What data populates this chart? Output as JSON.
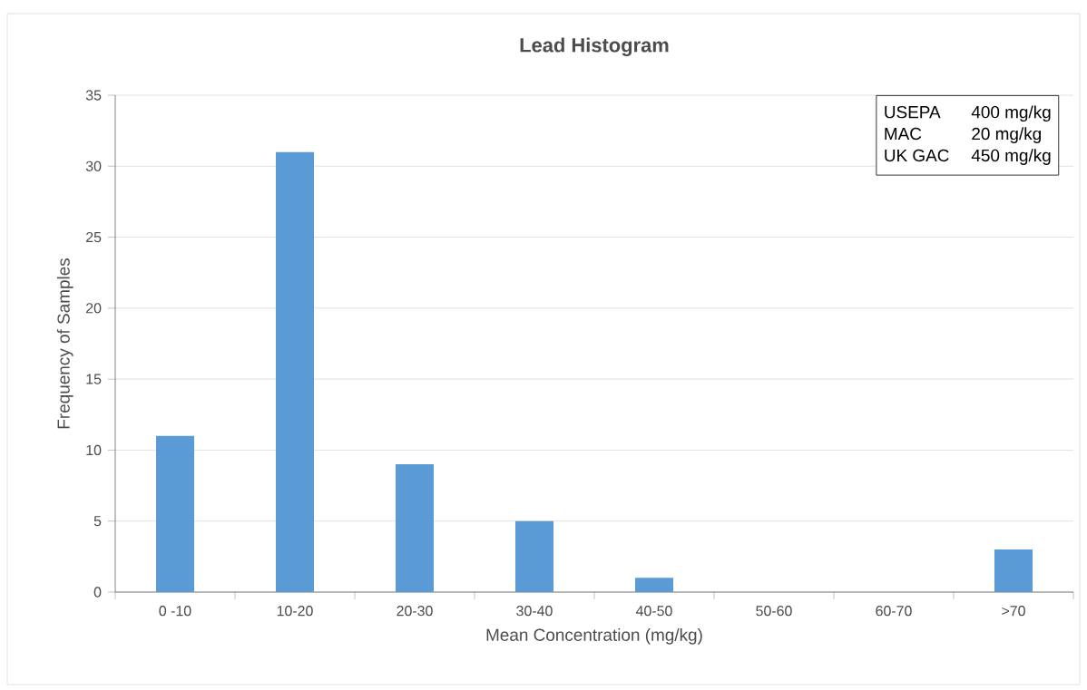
{
  "chart_data": {
    "type": "bar",
    "title": "Lead Histogram",
    "xlabel": "Mean Concentration (mg/kg)",
    "ylabel": "Frequency of Samples",
    "categories": [
      "0 -10",
      "10-20",
      "20-30",
      "30-40",
      "40-50",
      "50-60",
      "60-70",
      ">70"
    ],
    "values": [
      11,
      31,
      9,
      5,
      1,
      0,
      0,
      3
    ],
    "color": "#5b9bd5",
    "ylim": [
      0,
      35
    ],
    "yticks": [
      0,
      5,
      10,
      15,
      20,
      25,
      30,
      35
    ],
    "grid": "y",
    "annotations": [
      "USEPA",
      "400 mg/kg",
      "MAC",
      "20 mg/kg",
      "UK GAC",
      "450 mg/kg"
    ]
  }
}
